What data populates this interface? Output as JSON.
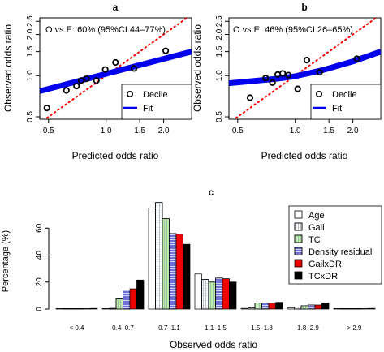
{
  "chart_data": [
    {
      "panel": "a",
      "type": "scatter",
      "annotation": "O vs E: 60% (95%CI 44–77%)",
      "xlabel": "Predicted odds ratio",
      "ylabel": "Observed odds ratio",
      "scale": "log",
      "xlim": [
        0.45,
        2.8
      ],
      "ylim": [
        0.48,
        2.65
      ],
      "xticks": [
        0.5,
        1.0,
        1.5,
        2.0
      ],
      "xtick_labels": [
        "0.5",
        "1.0",
        "1.5",
        "2.0"
      ],
      "yticks": [
        0.5,
        1.0,
        1.5,
        2.0,
        2.5
      ],
      "ytick_labels": [
        "0.5",
        "1.0",
        "1.5",
        "2.0",
        "2.5"
      ],
      "series": [
        {
          "name": "Decile",
          "kind": "points",
          "color": "#000000",
          "x": [
            0.49,
            0.62,
            0.7,
            0.74,
            0.79,
            0.89,
            0.99,
            1.12,
            1.4,
            2.05
          ],
          "y": [
            0.58,
            0.78,
            0.84,
            0.92,
            0.95,
            0.92,
            1.11,
            1.25,
            1.13,
            1.52
          ]
        },
        {
          "name": "Fit",
          "kind": "line",
          "color": "#0000ee",
          "x": [
            0.45,
            2.8
          ],
          "y": [
            0.77,
            1.5
          ]
        }
      ],
      "reference_line": {
        "slope": 1,
        "color": "#ff0000",
        "style": "dotted"
      },
      "legend": {
        "position": "bottom-right",
        "entries": [
          "Decile",
          "Fit"
        ]
      }
    },
    {
      "panel": "b",
      "type": "scatter",
      "annotation": "O vs E: 46% (95%CI 26–65%)",
      "xlabel": "Predicted odds ratio",
      "ylabel": "Observed odds ratio",
      "scale": "log",
      "xlim": [
        0.45,
        2.8
      ],
      "ylim": [
        0.48,
        2.65
      ],
      "xticks": [
        0.5,
        1.0,
        1.5,
        2.0
      ],
      "xtick_labels": [
        "0.5",
        "1.0",
        "1.5",
        "2.0"
      ],
      "yticks": [
        0.5,
        1.0,
        1.5,
        2.0,
        2.5
      ],
      "ytick_labels": [
        "0.5",
        "1.0",
        "1.5",
        "2.0",
        "2.5"
      ],
      "series": [
        {
          "name": "Decile",
          "kind": "points",
          "color": "#000000",
          "x": [
            0.58,
            0.7,
            0.76,
            0.81,
            0.86,
            0.92,
            1.03,
            1.15,
            1.34,
            2.1
          ],
          "y": [
            0.69,
            0.96,
            0.89,
            1.02,
            1.04,
            1.01,
            0.8,
            1.3,
            1.06,
            1.33
          ]
        },
        {
          "name": "Fit",
          "kind": "line",
          "color": "#0000ee",
          "x": [
            0.45,
            0.8,
            1.0,
            1.4,
            2.0,
            2.8
          ],
          "y": [
            0.88,
            0.95,
            0.99,
            1.1,
            1.27,
            1.5
          ]
        }
      ],
      "reference_line": {
        "slope": 1,
        "color": "#ff0000",
        "style": "dotted"
      },
      "legend": {
        "position": "bottom-right",
        "entries": [
          "Decile",
          "Fit"
        ]
      }
    },
    {
      "panel": "c",
      "type": "bar",
      "xlabel": "Observed odds ratio",
      "ylabel": "Percentage (%)",
      "ylim": [
        0,
        80
      ],
      "yticks": [
        0,
        20,
        40,
        60
      ],
      "categories": [
        "< 0.4",
        "0.4–0.7",
        "0.7–1.1",
        "1.1–1.5",
        "1.5–1.8",
        "1.8–2.9",
        "> 2.9"
      ],
      "series": [
        {
          "name": "Age",
          "color": "#ffffff",
          "pattern": "none",
          "values": [
            0.2,
            0.2,
            75,
            26,
            0.5,
            1,
            0.2
          ]
        },
        {
          "name": "Gail",
          "color": "#ffffff",
          "pattern": "vertical-grid",
          "values": [
            0.2,
            0.5,
            79,
            22,
            0.8,
            1.5,
            0.2
          ]
        },
        {
          "name": "TC",
          "color": "#b9f5a0",
          "pattern": "vertical-grid",
          "values": [
            0.2,
            7.5,
            67,
            20,
            4.5,
            2.5,
            0.3
          ]
        },
        {
          "name": "Density residual",
          "color": "#6b6fd6",
          "pattern": "horizontal",
          "values": [
            0.3,
            14,
            56,
            23,
            4.5,
            3,
            0.3
          ]
        },
        {
          "name": "GailxDR",
          "color": "#ee0000",
          "pattern": "none",
          "values": [
            0.3,
            15,
            55.5,
            22.5,
            4.5,
            3,
            0.3
          ]
        },
        {
          "name": "TCxDR",
          "color": "#000000",
          "pattern": "none",
          "values": [
            0.5,
            21.5,
            48,
            20,
            5,
            4.5,
            0.5
          ]
        }
      ],
      "legend": {
        "position": "top-right",
        "entries": [
          "Age",
          "Gail",
          "TC",
          "Density residual",
          "GailxDR",
          "TCxDR"
        ]
      }
    }
  ]
}
